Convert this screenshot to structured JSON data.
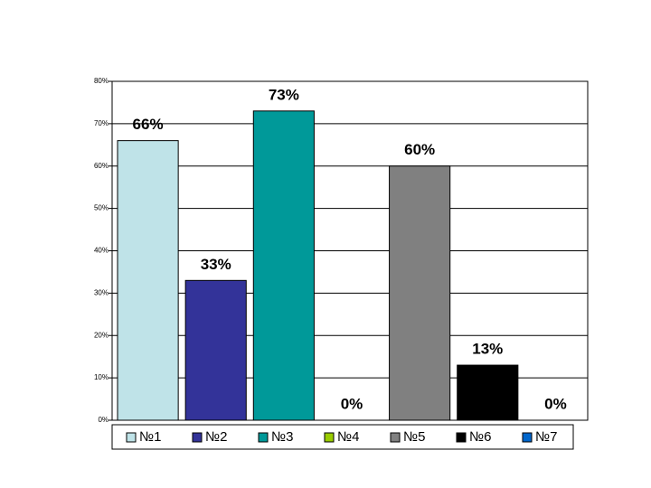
{
  "chart_data": {
    "type": "bar",
    "series": [
      {
        "name": "№1",
        "color": "#bfe3e8",
        "values": [
          66
        ],
        "value_labels": [
          "66%"
        ]
      },
      {
        "name": "№2",
        "color": "#333399",
        "values": [
          33
        ],
        "value_labels": [
          "33%"
        ]
      },
      {
        "name": "№3",
        "color": "#009999",
        "values": [
          73
        ],
        "value_labels": [
          "73%"
        ]
      },
      {
        "name": "№4",
        "color": "#99cc00",
        "values": [
          0
        ],
        "value_labels": [
          "0%"
        ]
      },
      {
        "name": "№5",
        "color": "#808080",
        "values": [
          60
        ],
        "value_labels": [
          "60%"
        ]
      },
      {
        "name": "№6",
        "color": "#000000",
        "values": [
          13
        ],
        "value_labels": [
          "13%"
        ]
      },
      {
        "name": "№7",
        "color": "#0066cc",
        "values": [
          0
        ],
        "value_labels": [
          "0%"
        ]
      }
    ],
    "ylim": [
      0,
      80
    ],
    "yticks": [
      {
        "value": 0,
        "label": "0%"
      },
      {
        "value": 10,
        "label": "10%"
      },
      {
        "value": 20,
        "label": "20%"
      },
      {
        "value": 30,
        "label": "30%"
      },
      {
        "value": 40,
        "label": "40%"
      },
      {
        "value": 50,
        "label": "50%"
      },
      {
        "value": 60,
        "label": "60%"
      },
      {
        "value": 70,
        "label": "70%"
      },
      {
        "value": 80,
        "label": "80%"
      }
    ],
    "grid": true,
    "legend": "bottom"
  }
}
